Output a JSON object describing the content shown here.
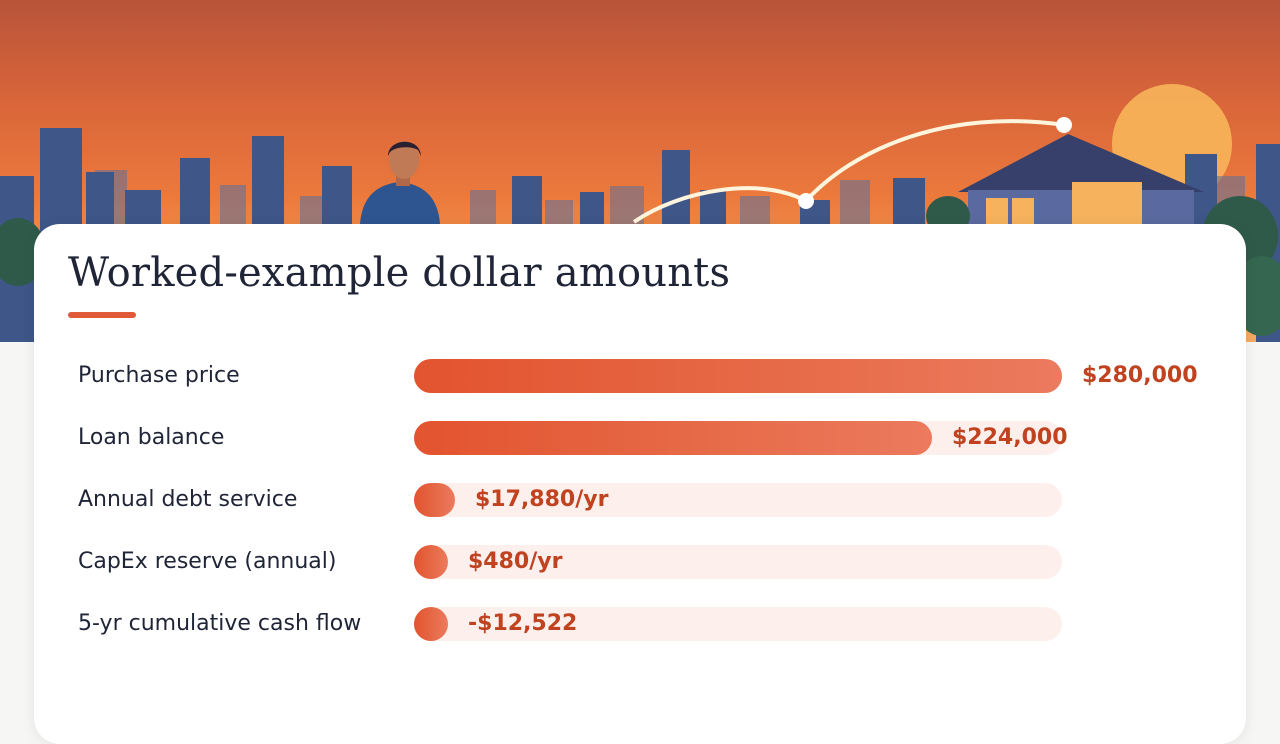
{
  "colors": {
    "accent": "#e05a37",
    "bar_start": "#e3532f",
    "bar_end": "#ec7a5e",
    "track": "#fcefec",
    "value_text": "#c0421f",
    "title_text": "#1f2436"
  },
  "hero": {
    "illustration": "sunset city skyline with man, house and arcing path"
  },
  "card": {
    "title": "Worked-example dollar amounts"
  },
  "chart_data": {
    "type": "bar",
    "orientation": "horizontal",
    "title": "Worked-example dollar amounts",
    "xlabel": "",
    "ylabel": "",
    "grid": false,
    "legend": "none",
    "categories": [
      "Purchase price",
      "Loan balance",
      "Annual debt service",
      "CapEx reserve (annual)",
      "5-yr cumulative cash flow"
    ],
    "values": [
      280000,
      224000,
      17880,
      480,
      -12522
    ],
    "value_labels": [
      "$280,000",
      "$224,000",
      "$17,880/yr",
      "$480/yr",
      "-$12,522"
    ],
    "xlim": [
      0,
      280000
    ]
  }
}
